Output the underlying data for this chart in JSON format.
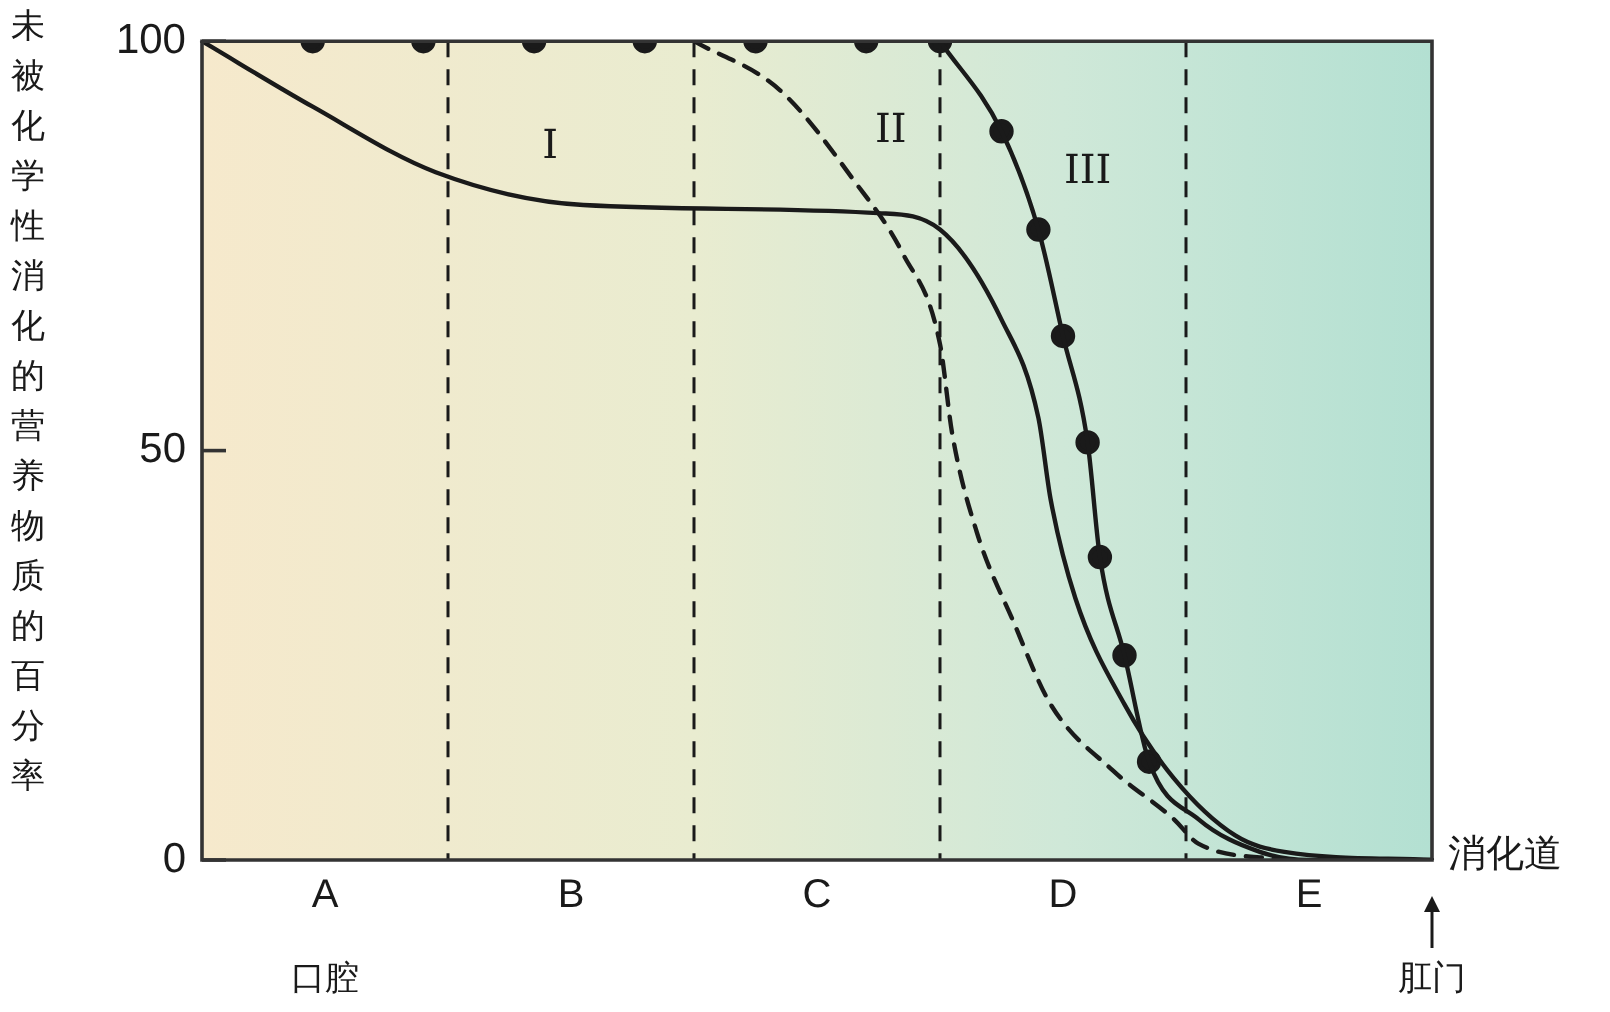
{
  "chart_data": {
    "type": "line",
    "ylabel": "未被化学性消化的营养物质的百分率",
    "xlabel": "消化道",
    "categories": [
      null,
      null,
      null,
      null,
      null,
      null,
      null,
      null,
      null,
      null,
      "A",
      null,
      null,
      null,
      null,
      null,
      null,
      null,
      null,
      null,
      null,
      null,
      null,
      null,
      null,
      null,
      null,
      null,
      null,
      null,
      "B",
      null,
      null,
      null,
      null,
      null,
      null,
      null,
      null,
      null,
      null,
      null,
      null,
      null,
      null,
      null,
      null,
      null,
      null,
      null,
      "C",
      null,
      null,
      null,
      null,
      null,
      null,
      null,
      null,
      null,
      null,
      null,
      null,
      null,
      null,
      null,
      null,
      null,
      null,
      null,
      "D",
      null,
      null,
      null,
      null,
      null,
      null,
      null,
      null,
      null,
      null,
      null,
      null,
      null,
      null,
      null,
      null,
      null,
      null,
      null,
      "E",
      null,
      null,
      null,
      null,
      null,
      null,
      null,
      null,
      null,
      null
    ],
    "ylim": [
      0,
      100
    ],
    "yticks": [
      0,
      50,
      100
    ],
    "marker": "none",
    "series": [
      {
        "color": "#1a1a1a",
        "line_style": "solid",
        "values": [
          100,
          null,
          null,
          null,
          null,
          null,
          null,
          null,
          null,
          92,
          null,
          null,
          null,
          null,
          null,
          null,
          null,
          null,
          null,
          84,
          null,
          null,
          null,
          null,
          null,
          null,
          null,
          null,
          null,
          null,
          null,
          80,
          null,
          null,
          null,
          null,
          null,
          null,
          null,
          null,
          null,
          null,
          null,
          null,
          null,
          null,
          null,
          null,
          null,
          null,
          null,
          null,
          null,
          null,
          null,
          79,
          null,
          null,
          null,
          null,
          77,
          null,
          null,
          null,
          null,
          66,
          null,
          null,
          54,
          44,
          null,
          32,
          null,
          null,
          null,
          19,
          null,
          null,
          null,
          10,
          null,
          null,
          null,
          null,
          3,
          null,
          null,
          null,
          1,
          null,
          null,
          null,
          null,
          null,
          null,
          null,
          null,
          null,
          null,
          null,
          0
        ]
      },
      {
        "color": "#1a1a1a",
        "line_style": "dashed",
        "values": [
          null,
          null,
          null,
          null,
          null,
          null,
          null,
          null,
          null,
          null,
          null,
          null,
          null,
          null,
          null,
          null,
          null,
          null,
          null,
          null,
          null,
          null,
          null,
          null,
          null,
          null,
          null,
          null,
          null,
          null,
          null,
          null,
          null,
          null,
          null,
          null,
          null,
          null,
          null,
          null,
          100,
          null,
          null,
          null,
          null,
          null,
          null,
          94,
          null,
          null,
          null,
          null,
          null,
          83,
          null,
          null,
          null,
          74,
          null,
          null,
          63,
          52,
          null,
          40,
          null,
          null,
          29,
          null,
          null,
          19,
          null,
          null,
          null,
          null,
          11,
          null,
          null,
          null,
          null,
          5,
          null,
          2,
          null,
          null,
          null,
          null,
          null,
          null,
          0,
          null,
          null,
          null,
          null,
          null,
          null,
          null,
          null,
          null,
          null,
          null,
          null
        ]
      },
      {
        "color": "#1a1a1a",
        "line_style": "solid",
        "values": [
          null,
          null,
          null,
          null,
          null,
          null,
          null,
          null,
          null,
          null,
          null,
          null,
          null,
          null,
          null,
          null,
          null,
          null,
          null,
          null,
          null,
          null,
          null,
          null,
          null,
          null,
          null,
          null,
          null,
          null,
          null,
          null,
          null,
          null,
          null,
          null,
          null,
          null,
          null,
          null,
          null,
          null,
          null,
          null,
          null,
          null,
          null,
          null,
          null,
          null,
          null,
          null,
          null,
          null,
          null,
          null,
          null,
          null,
          null,
          null,
          100,
          null,
          null,
          null,
          null,
          89,
          null,
          null,
          77,
          null,
          64,
          null,
          51,
          37,
          null,
          25,
          null,
          12,
          null,
          null,
          null,
          5,
          null,
          null,
          null,
          null,
          1,
          null,
          null,
          null,
          0,
          null,
          null,
          null,
          null,
          null,
          null,
          null,
          null,
          null,
          0
        ]
      },
      {
        "type": "scatter",
        "color": "#1a1a1a",
        "marker": "circle",
        "values": [
          null,
          null,
          null,
          null,
          null,
          null,
          null,
          null,
          null,
          100,
          null,
          null,
          null,
          null,
          null,
          null,
          null,
          null,
          100,
          null,
          null,
          null,
          null,
          null,
          null,
          null,
          null,
          100,
          null,
          null,
          null,
          null,
          null,
          null,
          null,
          null,
          100,
          null,
          null,
          null,
          null,
          null,
          null,
          null,
          null,
          100,
          null,
          null,
          null,
          null,
          null,
          null,
          null,
          null,
          100,
          null,
          null,
          null,
          null,
          null,
          100,
          null,
          null,
          null,
          null,
          89,
          null,
          null,
          77,
          null,
          64,
          null,
          51,
          37,
          null,
          25,
          null,
          12,
          null,
          null,
          null,
          null,
          null,
          null,
          null,
          null,
          null,
          null,
          null,
          null,
          null,
          null,
          null,
          null,
          null,
          null,
          null,
          null,
          null,
          null,
          null
        ]
      }
    ],
    "annotations": [
      "I",
      "II",
      "III",
      "口腔",
      "肛门"
    ]
  }
}
